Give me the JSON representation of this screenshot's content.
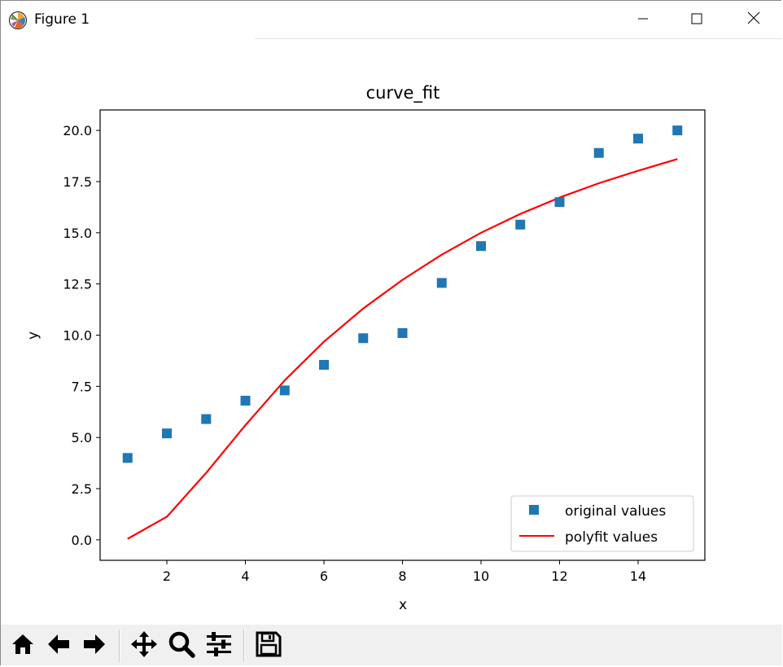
{
  "window": {
    "title": "Figure 1",
    "icon": "matplotlib-icon",
    "controls": [
      "minimize-icon",
      "maximize-icon",
      "close-icon"
    ]
  },
  "toolbar": {
    "buttons": [
      "home-icon",
      "back-arrow-icon",
      "forward-arrow-icon",
      "pan-move-icon",
      "zoom-magnifier-icon",
      "configure-subplots-icon",
      "save-disk-icon"
    ]
  },
  "chart_data": {
    "type": "scatter",
    "title": "curve_fit",
    "xlabel": "x",
    "ylabel": "y",
    "xlim": [
      0.3,
      15.7
    ],
    "ylim": [
      -1.0,
      21.0
    ],
    "xticks": [
      2,
      4,
      6,
      8,
      10,
      12,
      14
    ],
    "xtick_labels": [
      "2",
      "4",
      "6",
      "8",
      "10",
      "12",
      "14"
    ],
    "yticks": [
      0.0,
      2.5,
      5.0,
      7.5,
      10.0,
      12.5,
      15.0,
      17.5,
      20.0
    ],
    "ytick_labels": [
      "0.0",
      "2.5",
      "5.0",
      "7.5",
      "10.0",
      "12.5",
      "15.0",
      "17.5",
      "20.0"
    ],
    "grid": false,
    "legend_position": "bottom-right",
    "series": [
      {
        "name": "original values",
        "kind": "scatter",
        "marker": "square",
        "color": "#1f77b4",
        "x": [
          1,
          2,
          3,
          4,
          5,
          6,
          7,
          8,
          9,
          10,
          11,
          12,
          13,
          14,
          15
        ],
        "y": [
          4.0,
          5.2,
          5.9,
          6.8,
          7.3,
          8.55,
          9.85,
          10.1,
          12.55,
          14.35,
          15.4,
          16.5,
          18.9,
          19.6,
          20.0
        ]
      },
      {
        "name": "polyfit values",
        "kind": "line",
        "color": "#ff0000",
        "x": [
          1,
          2,
          3,
          4,
          5,
          6,
          7,
          8,
          9,
          10,
          11,
          12,
          13,
          14,
          15
        ],
        "y": [
          0.05,
          1.13,
          3.27,
          5.6,
          7.79,
          9.68,
          11.3,
          12.7,
          13.93,
          15.0,
          15.92,
          16.72,
          17.42,
          18.03,
          18.6
        ]
      }
    ]
  }
}
